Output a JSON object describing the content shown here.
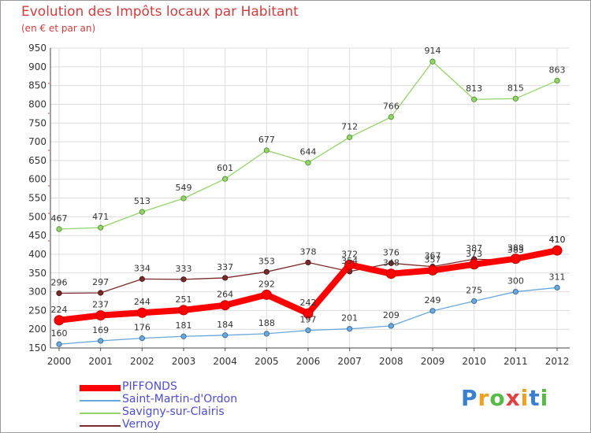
{
  "chart_data": {
    "type": "line",
    "title": "Evolution des Impôts locaux par Habitant",
    "subtitle": "(en € et par an)",
    "x": [
      "2000",
      "2001",
      "2002",
      "2003",
      "2004",
      "2005",
      "2006",
      "2007",
      "2008",
      "2009",
      "2010",
      "2011",
      "2012"
    ],
    "ylim": [
      150,
      950
    ],
    "yticks": [
      150,
      200,
      250,
      300,
      350,
      400,
      450,
      500,
      550,
      600,
      650,
      700,
      750,
      800,
      850,
      900,
      950
    ],
    "grid": true,
    "legend_position": "bottom-left",
    "series": [
      {
        "name": "PIFFONDS",
        "color": "#ff0000",
        "values": [
          224,
          237,
          244,
          251,
          264,
          292,
          242,
          372,
          348,
          357,
          373,
          388,
          410
        ]
      },
      {
        "name": "Saint-Martin-d'Ordon",
        "color": "#6aa7da",
        "values": [
          160,
          169,
          176,
          181,
          184,
          188,
          197,
          201,
          209,
          249,
          275,
          300,
          311
        ]
      },
      {
        "name": "Savigny-sur-Clairis",
        "color": "#94d36a",
        "values": [
          467,
          471,
          513,
          549,
          601,
          677,
          644,
          712,
          766,
          914,
          813,
          815,
          863
        ]
      },
      {
        "name": "Vernoy",
        "color": "#7a2a2a",
        "values": [
          296,
          297,
          334,
          333,
          337,
          353,
          378,
          354,
          376,
          367,
          387,
          383,
          410
        ]
      }
    ]
  },
  "logo": {
    "text": "Proxiti",
    "letters": [
      "P",
      "r",
      "o",
      "x",
      "i",
      "t",
      "i"
    ]
  }
}
